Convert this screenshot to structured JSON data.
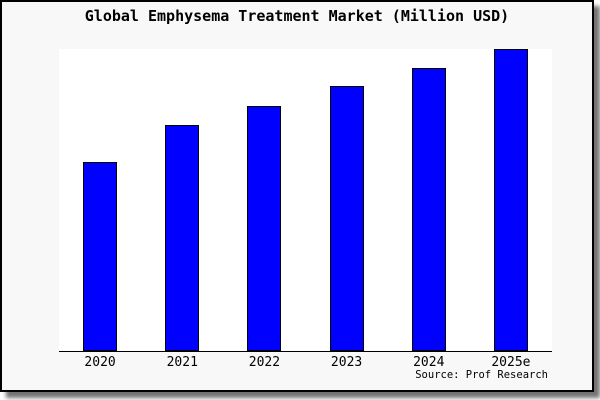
{
  "window": {
    "background_color": "#f8f8f8",
    "border_color": "#000000",
    "plot_background_color": "#ffffff"
  },
  "title": "Global Emphysema Treatment Market (Million USD)",
  "source_note": "Source: Prof Research",
  "chart_data": {
    "type": "bar",
    "title": "Global Emphysema Treatment Market (Million USD)",
    "categories": [
      "2020",
      "2021",
      "2022",
      "2023",
      "2024",
      "2025e"
    ],
    "values": [
      62.5,
      74.9,
      81.2,
      87.6,
      93.6,
      100
    ],
    "xlabel": "",
    "ylabel": "",
    "ylim": [
      0,
      100
    ],
    "note": "No y-axis shown; values estimated from bar heights as percent of tallest (2025e) bar",
    "bar_color": "#0000ff",
    "bar_border_color": "#000000",
    "grid": false,
    "legend": false
  }
}
